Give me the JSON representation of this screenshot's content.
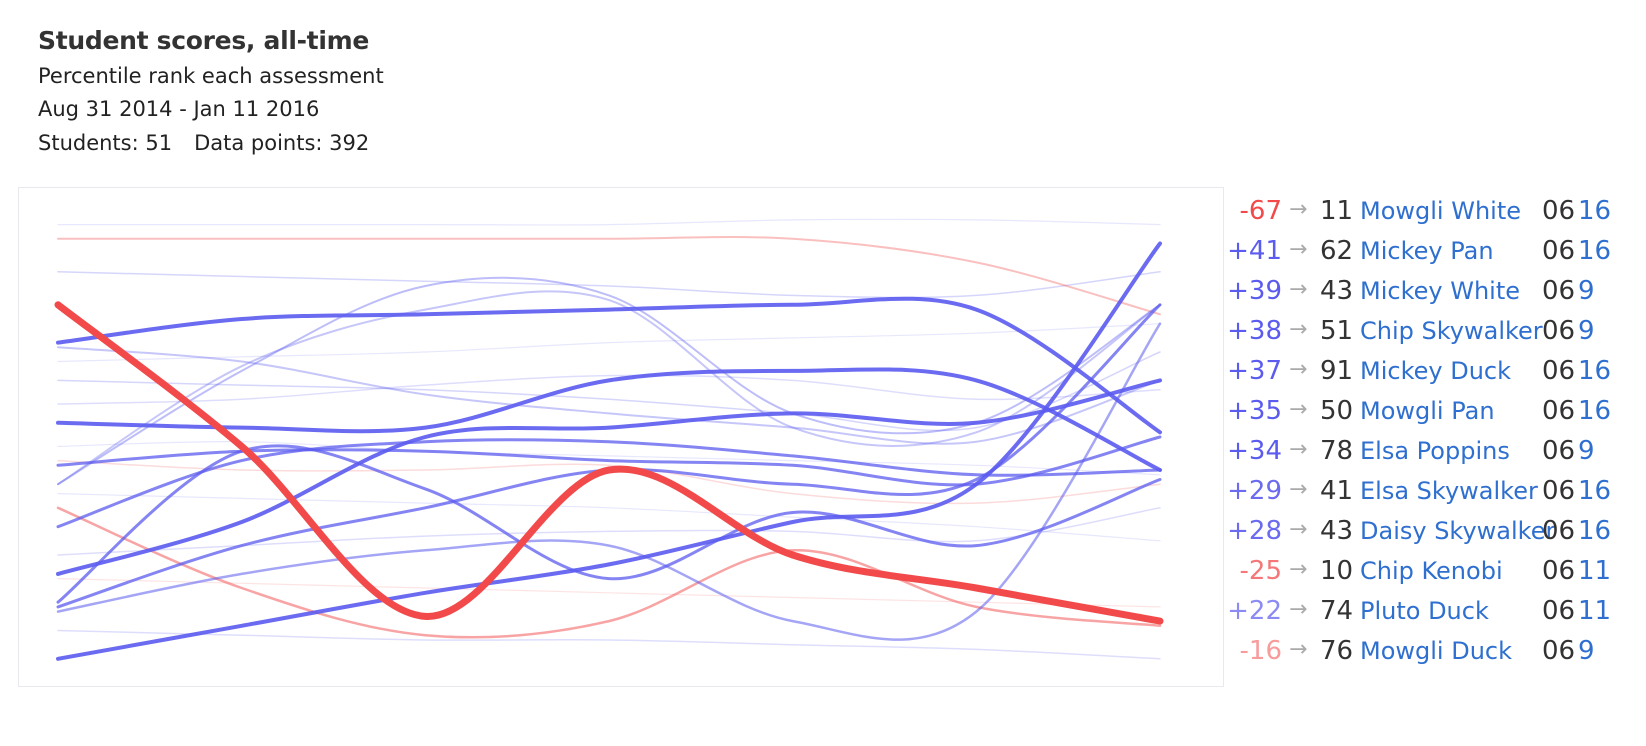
{
  "header": {
    "title": "Student scores, all-time",
    "subtitle": "Percentile rank each assessment",
    "date_range": "Aug 31 2014 - Jan 11 2016",
    "students_text": "Students: 51",
    "points_text": "Data points: 392"
  },
  "colors": {
    "up": "#5b5bef",
    "down": "#f24a4a",
    "grade": "#333333",
    "name": "#2e6fcf",
    "arrow": "#aaaaaa"
  },
  "chart_data": {
    "type": "line",
    "title": "Student scores, all-time",
    "subtitle": "Percentile rank each assessment",
    "ylabel": "",
    "xlabel": "",
    "x": [
      0,
      1,
      2,
      3,
      4,
      5,
      6
    ],
    "ylim": [
      0,
      100
    ],
    "grid": false,
    "legend": "right",
    "series": [
      {
        "values": [
          78,
          48,
          12,
          43,
          25,
          18,
          11
        ],
        "color": "#f24a4a",
        "width": 7,
        "opacity": 1
      },
      {
        "values": [
          21,
          32,
          50,
          52,
          55,
          53,
          62
        ],
        "color": "#5b5bef",
        "width": 4,
        "opacity": 0.9
      },
      {
        "values": [
          53,
          52,
          52,
          62,
          64,
          62,
          43
        ],
        "color": "#5b5bef",
        "width": 4,
        "opacity": 0.9
      },
      {
        "values": [
          70,
          75,
          76,
          77,
          78,
          77,
          51
        ],
        "color": "#5b5bef",
        "width": 4,
        "opacity": 0.9
      },
      {
        "values": [
          3,
          10,
          17,
          23,
          32,
          40,
          91
        ],
        "color": "#5b5bef",
        "width": 4,
        "opacity": 0.9
      },
      {
        "values": [
          44,
          47,
          47,
          45,
          44,
          40,
          50
        ],
        "color": "#5b5bef",
        "width": 3,
        "opacity": 0.75
      },
      {
        "values": [
          14,
          27,
          35,
          43,
          40,
          41,
          78
        ],
        "color": "#5b5bef",
        "width": 3,
        "opacity": 0.75
      },
      {
        "values": [
          15,
          47,
          39,
          20,
          34,
          27,
          41
        ],
        "color": "#5b5bef",
        "width": 3,
        "opacity": 0.75
      },
      {
        "values": [
          31,
          45,
          49,
          49,
          46,
          42,
          43
        ],
        "color": "#5b5bef",
        "width": 3,
        "opacity": 0.75
      },
      {
        "values": [
          35,
          18,
          8,
          11,
          26,
          14,
          10
        ],
        "color": "#f24a4a",
        "width": 2.5,
        "opacity": 0.5
      },
      {
        "values": [
          13,
          21,
          26,
          27,
          11,
          13,
          74
        ],
        "color": "#5b5bef",
        "width": 2.5,
        "opacity": 0.55
      },
      {
        "values": [
          92,
          92,
          92,
          92,
          92,
          87,
          76
        ],
        "color": "#f24a4a",
        "width": 2,
        "opacity": 0.35
      },
      {
        "values": [
          40,
          64,
          82,
          80,
          55,
          53,
          78
        ],
        "color": "#5b5bef",
        "width": 2,
        "opacity": 0.4
      },
      {
        "values": [
          40,
          65,
          77,
          79,
          52,
          51,
          78
        ],
        "color": "#5b5bef",
        "width": 2,
        "opacity": 0.35
      },
      {
        "values": [
          69,
          66,
          59,
          55,
          52,
          49,
          62
        ],
        "color": "#5b5bef",
        "width": 2,
        "opacity": 0.35
      },
      {
        "values": [
          85,
          84,
          83,
          82,
          80,
          80,
          85
        ],
        "color": "#5b5bef",
        "width": 1.5,
        "opacity": 0.25
      },
      {
        "values": [
          62,
          61,
          60,
          58,
          55,
          52,
          68
        ],
        "color": "#5b5bef",
        "width": 1.5,
        "opacity": 0.25
      },
      {
        "values": [
          45,
          43,
          43,
          44,
          38,
          36,
          40
        ],
        "color": "#f24a4a",
        "width": 1.5,
        "opacity": 0.2
      },
      {
        "values": [
          57,
          58,
          61,
          63,
          62,
          58,
          60
        ],
        "color": "#5b5bef",
        "width": 1.5,
        "opacity": 0.2
      },
      {
        "values": [
          25,
          27,
          29,
          30,
          30,
          28,
          35
        ],
        "color": "#5b5bef",
        "width": 1.5,
        "opacity": 0.2
      },
      {
        "values": [
          9,
          8,
          7,
          7,
          6,
          5,
          3
        ],
        "color": "#5b5bef",
        "width": 1.5,
        "opacity": 0.2
      },
      {
        "values": [
          95,
          95,
          95,
          95,
          96,
          96,
          95
        ],
        "color": "#5b5bef",
        "width": 1.2,
        "opacity": 0.15
      },
      {
        "values": [
          66,
          67,
          68,
          70,
          71,
          72,
          74
        ],
        "color": "#5b5bef",
        "width": 1.2,
        "opacity": 0.15
      },
      {
        "values": [
          48,
          49,
          47,
          46,
          45,
          44,
          42
        ],
        "color": "#5b5bef",
        "width": 1.2,
        "opacity": 0.15
      },
      {
        "values": [
          20,
          19,
          18,
          17,
          16,
          15,
          14
        ],
        "color": "#f24a4a",
        "width": 1.2,
        "opacity": 0.15
      },
      {
        "values": [
          38,
          37,
          36,
          35,
          33,
          31,
          28
        ],
        "color": "#5b5bef",
        "width": 1.2,
        "opacity": 0.15
      }
    ],
    "legend_rows": [
      {
        "delta": "-67",
        "direction": "down",
        "latest": "11",
        "name": "Mowgli White",
        "grade": "06",
        "count": "16",
        "opacity": 1
      },
      {
        "delta": "+41",
        "direction": "up",
        "latest": "62",
        "name": "Mickey Pan",
        "grade": "06",
        "count": "16",
        "opacity": 1
      },
      {
        "delta": "+39",
        "direction": "up",
        "latest": "43",
        "name": "Mickey White",
        "grade": "06",
        "count": "9",
        "opacity": 1
      },
      {
        "delta": "+38",
        "direction": "up",
        "latest": "51",
        "name": "Chip Skywalker",
        "grade": "06",
        "count": "9",
        "opacity": 1
      },
      {
        "delta": "+37",
        "direction": "up",
        "latest": "91",
        "name": "Mickey Duck",
        "grade": "06",
        "count": "16",
        "opacity": 1
      },
      {
        "delta": "+35",
        "direction": "up",
        "latest": "50",
        "name": "Mowgli Pan",
        "grade": "06",
        "count": "16",
        "opacity": 1
      },
      {
        "delta": "+34",
        "direction": "up",
        "latest": "78",
        "name": "Elsa Poppins",
        "grade": "06",
        "count": "9",
        "opacity": 1
      },
      {
        "delta": "+29",
        "direction": "up",
        "latest": "41",
        "name": "Elsa Skywalker",
        "grade": "06",
        "count": "16",
        "opacity": 0.9
      },
      {
        "delta": "+28",
        "direction": "up",
        "latest": "43",
        "name": "Daisy Skywalker",
        "grade": "06",
        "count": "16",
        "opacity": 0.9
      },
      {
        "delta": "-25",
        "direction": "down",
        "latest": "10",
        "name": "Chip Kenobi",
        "grade": "06",
        "count": "11",
        "opacity": 0.75
      },
      {
        "delta": "+22",
        "direction": "up",
        "latest": "74",
        "name": "Pluto Duck",
        "grade": "06",
        "count": "11",
        "opacity": 0.7
      },
      {
        "delta": "-16",
        "direction": "down",
        "latest": "76",
        "name": "Mowgli Duck",
        "grade": "06",
        "count": "9",
        "opacity": 0.55
      }
    ]
  }
}
